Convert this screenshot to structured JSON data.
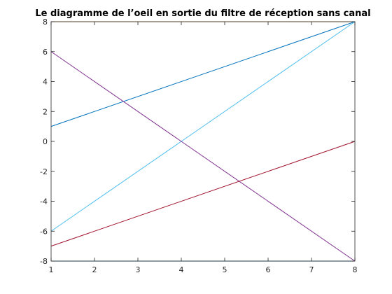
{
  "chart_data": {
    "type": "line",
    "title": "Le diagramme de l’oeil en sortie du filtre de réception sans canal",
    "xlabel": "",
    "ylabel": "",
    "xlim": [
      1,
      8
    ],
    "ylim": [
      -8,
      8
    ],
    "xticks": [
      "1",
      "2",
      "3",
      "4",
      "5",
      "6",
      "7",
      "8"
    ],
    "yticks": [
      "-8",
      "-6",
      "-4",
      "-2",
      "0",
      "2",
      "4",
      "6",
      "8"
    ],
    "grid": false,
    "series": [
      {
        "color": "#0072BD",
        "x": [
          1,
          8
        ],
        "y": [
          1,
          8
        ]
      },
      {
        "color": "#4DBEEE",
        "x": [
          1,
          8
        ],
        "y": [
          -6,
          8
        ]
      },
      {
        "color": "#7E2F8E",
        "x": [
          1,
          8
        ],
        "y": [
          6,
          -8
        ]
      },
      {
        "color": "#A2142F",
        "x": [
          1,
          8
        ],
        "y": [
          -7,
          0
        ]
      },
      {
        "color": "#EDB120",
        "x": [
          1,
          8
        ],
        "y": [
          8,
          8
        ]
      },
      {
        "color": "#0072BD",
        "x": [
          1,
          8
        ],
        "y": [
          -8,
          -8
        ]
      }
    ]
  }
}
